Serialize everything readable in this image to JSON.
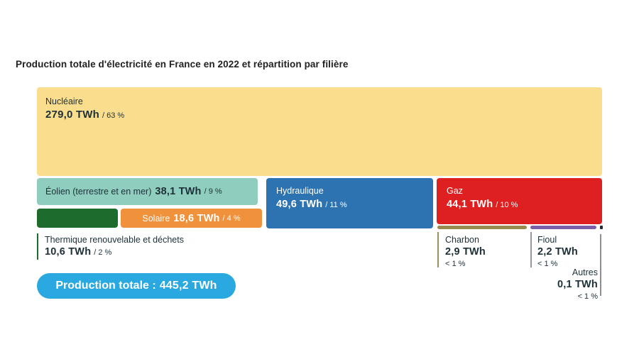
{
  "title": "Production totale d'électricité en France en 2022 et répartition par filière",
  "total_pill": {
    "label": "Production totale :",
    "value": "445,2 TWh"
  },
  "colors": {
    "text_dark": "#1d3038",
    "text_light": "#ffffff",
    "pill_blue": "#29A9E0",
    "connector_thermique": "#1E6B2E",
    "connector_charbon": "#9d8d62",
    "connector_fioul": "#9a93a8",
    "connector_autres": "#8f8f8f"
  },
  "chart_data": {
    "type": "treemap",
    "title": "Production totale d'électricité en France en 2022 et répartition par filière",
    "unit": "TWh",
    "total": {
      "label": "Production totale",
      "value_twh": 445.2,
      "value_label": "445,2 TWh"
    },
    "segments": [
      {
        "name": "Nucléaire",
        "value_twh": 279.0,
        "value_label": "279,0 TWh",
        "share_pct": 63,
        "share_label": "/ 63 %",
        "color": "#FBDE8D"
      },
      {
        "name": "Éolien (terrestre et en mer)",
        "value_twh": 38.1,
        "value_label": "38,1 TWh",
        "share_pct": 9,
        "share_label": "/ 9 %",
        "color": "#8FCDBF"
      },
      {
        "name": "Hydraulique",
        "value_twh": 49.6,
        "value_label": "49,6 TWh",
        "share_pct": 11,
        "share_label": "/ 11 %",
        "color": "#2E73B1"
      },
      {
        "name": "Gaz",
        "value_twh": 44.1,
        "value_label": "44,1 TWh",
        "share_pct": 10,
        "share_label": "/ 10 %",
        "color": "#DF2020"
      },
      {
        "name": "Solaire",
        "value_twh": 18.6,
        "value_label": "18,6 TWh",
        "share_pct": 4,
        "share_label": "/ 4 %",
        "color": "#F0913C"
      },
      {
        "name": "Thermique renouvelable et déchets",
        "value_twh": 10.6,
        "value_label": "10,6 TWh",
        "share_pct": 2,
        "share_label": "/ 2 %",
        "color": "#1E6B2E"
      },
      {
        "name": "Charbon",
        "value_twh": 2.9,
        "value_label": "2,9 TWh",
        "share_label": "< 1 %",
        "color": "#98894F"
      },
      {
        "name": "Fioul",
        "value_twh": 2.2,
        "value_label": "2,2 TWh",
        "share_label": "< 1 %",
        "color": "#7B5EA7"
      },
      {
        "name": "Autres",
        "value_twh": 0.1,
        "value_label": "0,1 TWh",
        "share_label": "< 1 %",
        "color": "#232C3B"
      }
    ]
  }
}
